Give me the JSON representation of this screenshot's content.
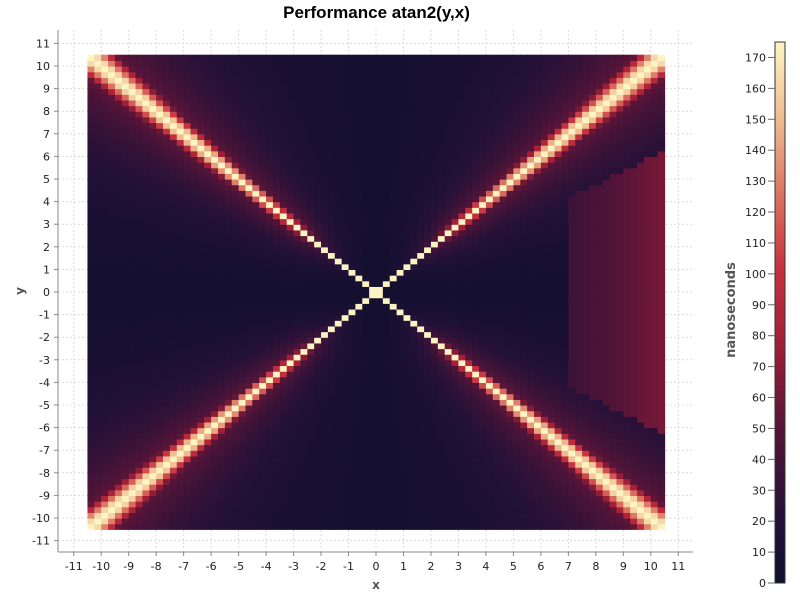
{
  "chart_data": {
    "type": "heatmap",
    "title": "Performance atan2(y,x)",
    "xlabel": "x",
    "ylabel": "y",
    "colorbar_label": "nanoseconds",
    "xlim": [
      -11.5,
      11.5
    ],
    "ylim": [
      -11.5,
      11.5
    ],
    "x_ticks": [
      -11,
      -10,
      -9,
      -8,
      -7,
      -6,
      -5,
      -4,
      -3,
      -2,
      -1,
      0,
      1,
      2,
      3,
      4,
      5,
      6,
      7,
      8,
      9,
      10,
      11
    ],
    "y_ticks": [
      -11,
      -10,
      -9,
      -8,
      -7,
      -6,
      -5,
      -4,
      -3,
      -2,
      -1,
      0,
      1,
      2,
      3,
      4,
      5,
      6,
      7,
      8,
      9,
      10,
      11
    ],
    "data_extent": {
      "x": [
        -10.5,
        10.5
      ],
      "y": [
        -10.5,
        10.5
      ]
    },
    "grid_step": 0.25,
    "colorbar_range": [
      0,
      175
    ],
    "colorbar_ticks": [
      0,
      10,
      20,
      30,
      40,
      50,
      60,
      70,
      80,
      90,
      100,
      110,
      120,
      130,
      140,
      150,
      160,
      170
    ],
    "grid": true,
    "colormap": [
      "#100f2e",
      "#3a1035",
      "#8c1b35",
      "#c93a45",
      "#e28a78",
      "#f6d9a6",
      "#fdf4c4"
    ],
    "ridge_peak_ns": 175,
    "background_ns": 5
  }
}
